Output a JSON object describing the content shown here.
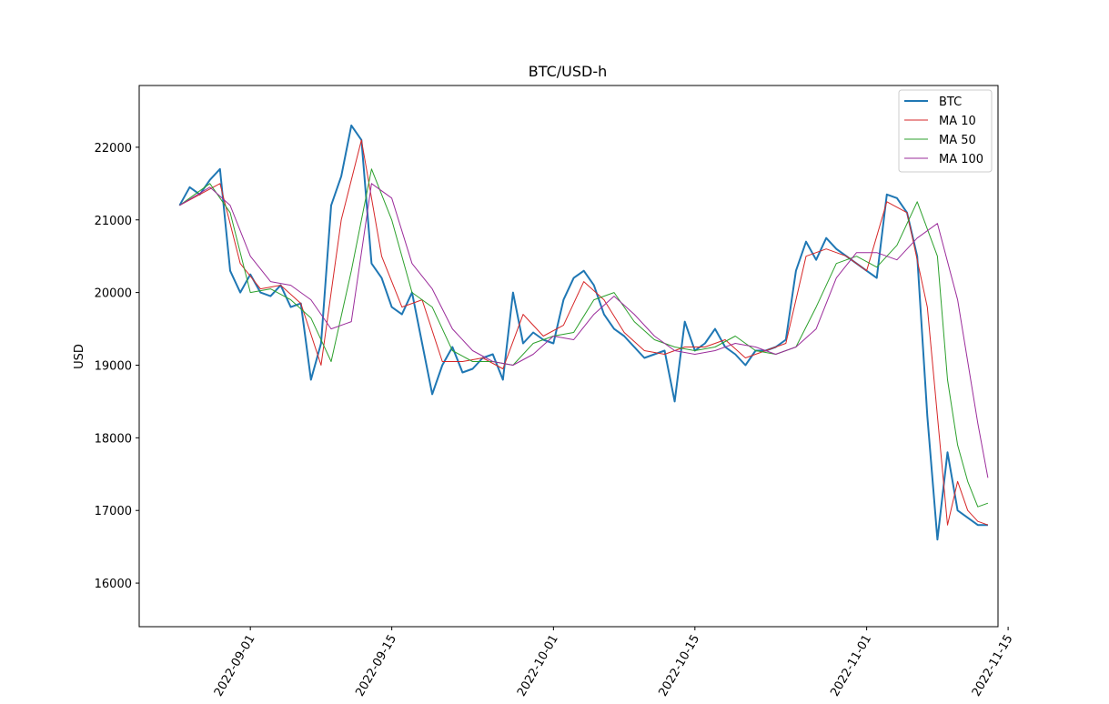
{
  "chart_data": {
    "type": "line",
    "title": "BTC/USD-h",
    "xlabel": "",
    "ylabel": "USD",
    "x_type": "date",
    "xlim": [
      "2022-08-21",
      "2022-11-14"
    ],
    "ylim": [
      15400,
      22850
    ],
    "yticks": [
      16000,
      17000,
      18000,
      19000,
      20000,
      21000,
      22000
    ],
    "xticks": [
      "2022-09-01",
      "2022-09-15",
      "2022-10-01",
      "2022-10-15",
      "2022-11-01",
      "2022-11-15"
    ],
    "grid": false,
    "legend_position": "upper right",
    "series": [
      {
        "name": "BTC",
        "color": "#1f77b4",
        "x": [
          "2022-08-25",
          "2022-08-26",
          "2022-08-27",
          "2022-08-28",
          "2022-08-29",
          "2022-08-30",
          "2022-08-31",
          "2022-09-01",
          "2022-09-02",
          "2022-09-03",
          "2022-09-04",
          "2022-09-05",
          "2022-09-06",
          "2022-09-07",
          "2022-09-08",
          "2022-09-09",
          "2022-09-10",
          "2022-09-11",
          "2022-09-12",
          "2022-09-13",
          "2022-09-14",
          "2022-09-15",
          "2022-09-16",
          "2022-09-17",
          "2022-09-18",
          "2022-09-19",
          "2022-09-20",
          "2022-09-21",
          "2022-09-22",
          "2022-09-23",
          "2022-09-24",
          "2022-09-25",
          "2022-09-26",
          "2022-09-27",
          "2022-09-28",
          "2022-09-29",
          "2022-09-30",
          "2022-10-01",
          "2022-10-02",
          "2022-10-03",
          "2022-10-04",
          "2022-10-05",
          "2022-10-06",
          "2022-10-07",
          "2022-10-08",
          "2022-10-09",
          "2022-10-10",
          "2022-10-11",
          "2022-10-12",
          "2022-10-13",
          "2022-10-14",
          "2022-10-15",
          "2022-10-16",
          "2022-10-17",
          "2022-10-18",
          "2022-10-19",
          "2022-10-20",
          "2022-10-21",
          "2022-10-22",
          "2022-10-23",
          "2022-10-24",
          "2022-10-25",
          "2022-10-26",
          "2022-10-27",
          "2022-10-28",
          "2022-10-29",
          "2022-10-30",
          "2022-10-31",
          "2022-11-01",
          "2022-11-02",
          "2022-11-03",
          "2022-11-04",
          "2022-11-05",
          "2022-11-06",
          "2022-11-07",
          "2022-11-08",
          "2022-11-09",
          "2022-11-10",
          "2022-11-11",
          "2022-11-12",
          "2022-11-13"
        ],
        "values": [
          21200,
          21450,
          21350,
          21550,
          21700,
          20300,
          20000,
          20250,
          20000,
          19950,
          20100,
          19800,
          19850,
          18800,
          19300,
          21200,
          21600,
          22300,
          22100,
          20400,
          20200,
          19800,
          19700,
          20000,
          19300,
          18600,
          19000,
          19250,
          18900,
          18950,
          19100,
          19150,
          18800,
          20000,
          19300,
          19450,
          19350,
          19300,
          19900,
          20200,
          20300,
          20100,
          19700,
          19500,
          19400,
          19250,
          19100,
          19150,
          19200,
          18500,
          19600,
          19200,
          19300,
          19500,
          19250,
          19150,
          19000,
          19200,
          19200,
          19250,
          19350,
          20300,
          20700,
          20450,
          20750,
          20600,
          20500,
          20400,
          20300,
          20200,
          21350,
          21300,
          21100,
          20500,
          18300,
          16600,
          17800,
          17000,
          16900,
          16800,
          16800
        ]
      },
      {
        "name": "MA 10",
        "color": "#d62728",
        "x": [
          "2022-08-25",
          "2022-08-27",
          "2022-08-29",
          "2022-08-31",
          "2022-09-02",
          "2022-09-04",
          "2022-09-06",
          "2022-09-08",
          "2022-09-10",
          "2022-09-12",
          "2022-09-14",
          "2022-09-16",
          "2022-09-18",
          "2022-09-20",
          "2022-09-22",
          "2022-09-24",
          "2022-09-26",
          "2022-09-28",
          "2022-09-30",
          "2022-10-02",
          "2022-10-04",
          "2022-10-06",
          "2022-10-08",
          "2022-10-10",
          "2022-10-12",
          "2022-10-14",
          "2022-10-16",
          "2022-10-18",
          "2022-10-20",
          "2022-10-22",
          "2022-10-24",
          "2022-10-26",
          "2022-10-28",
          "2022-10-30",
          "2022-11-01",
          "2022-11-03",
          "2022-11-05",
          "2022-11-07",
          "2022-11-09",
          "2022-11-10",
          "2022-11-11",
          "2022-11-12",
          "2022-11-13"
        ],
        "values": [
          21200,
          21350,
          21500,
          20400,
          20050,
          20100,
          19850,
          19000,
          21000,
          22100,
          20500,
          19800,
          19900,
          19050,
          19050,
          19100,
          18950,
          19700,
          19400,
          19550,
          20150,
          19900,
          19450,
          19200,
          19150,
          19250,
          19250,
          19350,
          19100,
          19200,
          19300,
          20500,
          20600,
          20500,
          20300,
          21250,
          21100,
          19800,
          16800,
          17400,
          17000,
          16850,
          16800
        ]
      },
      {
        "name": "MA 50",
        "color": "#2ca02c",
        "x": [
          "2022-08-25",
          "2022-08-28",
          "2022-08-30",
          "2022-09-01",
          "2022-09-03",
          "2022-09-05",
          "2022-09-07",
          "2022-09-09",
          "2022-09-11",
          "2022-09-13",
          "2022-09-15",
          "2022-09-17",
          "2022-09-19",
          "2022-09-21",
          "2022-09-23",
          "2022-09-25",
          "2022-09-27",
          "2022-09-29",
          "2022-10-01",
          "2022-10-03",
          "2022-10-05",
          "2022-10-07",
          "2022-10-09",
          "2022-10-11",
          "2022-10-13",
          "2022-10-15",
          "2022-10-17",
          "2022-10-19",
          "2022-10-21",
          "2022-10-23",
          "2022-10-25",
          "2022-10-27",
          "2022-10-29",
          "2022-10-31",
          "2022-11-02",
          "2022-11-04",
          "2022-11-06",
          "2022-11-08",
          "2022-11-09",
          "2022-11-10",
          "2022-11-11",
          "2022-11-12",
          "2022-11-13"
        ],
        "values": [
          21200,
          21500,
          21100,
          20000,
          20050,
          19900,
          19650,
          19050,
          20300,
          21700,
          21000,
          20000,
          19800,
          19200,
          19050,
          19050,
          19000,
          19300,
          19400,
          19450,
          19900,
          20000,
          19600,
          19350,
          19250,
          19200,
          19250,
          19400,
          19200,
          19150,
          19250,
          19800,
          20400,
          20500,
          20350,
          20650,
          21250,
          20500,
          18800,
          17900,
          17400,
          17050,
          17100
        ]
      },
      {
        "name": "MA 100",
        "color": "#9b2c9b",
        "x": [
          "2022-08-25",
          "2022-08-28",
          "2022-08-30",
          "2022-09-01",
          "2022-09-03",
          "2022-09-05",
          "2022-09-07",
          "2022-09-09",
          "2022-09-11",
          "2022-09-13",
          "2022-09-15",
          "2022-09-17",
          "2022-09-19",
          "2022-09-21",
          "2022-09-23",
          "2022-09-25",
          "2022-09-27",
          "2022-09-29",
          "2022-10-01",
          "2022-10-03",
          "2022-10-05",
          "2022-10-07",
          "2022-10-09",
          "2022-10-11",
          "2022-10-13",
          "2022-10-15",
          "2022-10-17",
          "2022-10-19",
          "2022-10-21",
          "2022-10-23",
          "2022-10-25",
          "2022-10-27",
          "2022-10-29",
          "2022-10-31",
          "2022-11-02",
          "2022-11-04",
          "2022-11-06",
          "2022-11-08",
          "2022-11-10",
          "2022-11-12",
          "2022-11-13"
        ],
        "values": [
          21200,
          21450,
          21200,
          20500,
          20150,
          20100,
          19900,
          19500,
          19600,
          21500,
          21300,
          20400,
          20050,
          19500,
          19200,
          19050,
          19000,
          19150,
          19400,
          19350,
          19700,
          19950,
          19700,
          19400,
          19200,
          19150,
          19200,
          19300,
          19250,
          19150,
          19250,
          19500,
          20200,
          20550,
          20550,
          20450,
          20750,
          20950,
          19900,
          18200,
          17450
        ]
      }
    ]
  }
}
